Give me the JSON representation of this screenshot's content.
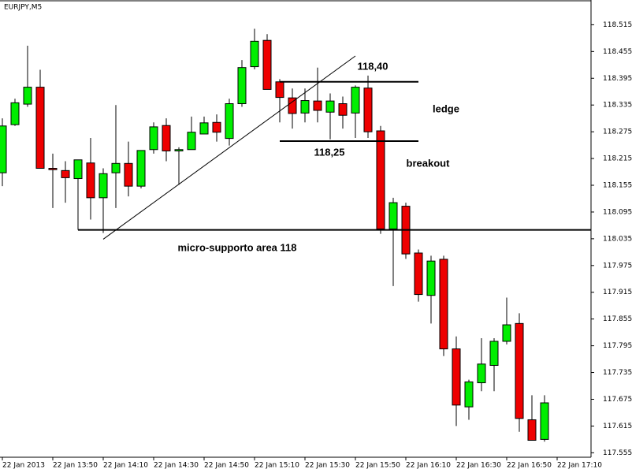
{
  "chart_data": {
    "type": "candlestick",
    "title": "EURJPY,M5",
    "categories": [
      "22 Jan 2013",
      null,
      null,
      null,
      "22 Jan 13:50",
      null,
      null,
      null,
      "22 Jan 14:10",
      null,
      null,
      null,
      "22 Jan 14:30",
      null,
      null,
      null,
      "22 Jan 14:50",
      null,
      null,
      null,
      "22 Jan 15:10",
      null,
      null,
      null,
      "22 Jan 15:30",
      null,
      null,
      null,
      "22 Jan 15:50",
      null,
      null,
      null,
      "22 Jan 16:10",
      null,
      null,
      null,
      "22 Jan 16:30",
      null,
      null,
      null,
      "22 Jan 16:50",
      null,
      null,
      null,
      "22 Jan 17:10"
    ],
    "open": [
      118.183,
      118.291,
      118.337,
      118.375,
      118.193,
      118.188,
      118.17,
      118.205,
      118.127,
      118.183,
      118.204,
      118.153,
      118.235,
      118.289,
      118.232,
      118.235,
      118.27,
      118.296,
      118.26,
      118.338,
      118.421,
      118.48,
      118.387,
      118.351,
      118.317,
      118.344,
      118.319,
      118.338,
      118.317,
      118.373,
      118.277,
      118.057,
      118.108,
      118.003,
      117.908,
      117.989,
      117.788,
      117.658,
      117.712,
      117.751,
      117.805,
      117.845,
      117.629,
      117.585,
      null
    ],
    "high": [
      118.305,
      118.349,
      118.468,
      118.414,
      118.226,
      118.209,
      118.212,
      118.261,
      118.193,
      118.335,
      118.253,
      118.233,
      118.296,
      118.305,
      118.24,
      118.309,
      118.309,
      118.314,
      118.349,
      118.436,
      118.506,
      118.494,
      118.393,
      118.372,
      118.372,
      118.419,
      118.361,
      118.354,
      118.379,
      118.401,
      118.288,
      118.127,
      118.116,
      118.011,
      117.997,
      117.997,
      117.816,
      117.719,
      117.812,
      117.812,
      117.903,
      117.868,
      117.684,
      117.684,
      null
    ],
    "low": [
      118.153,
      118.288,
      118.331,
      118.193,
      118.104,
      118.116,
      118.055,
      118.078,
      118.048,
      118.104,
      118.13,
      118.148,
      118.226,
      118.209,
      118.156,
      118.235,
      118.27,
      118.253,
      118.244,
      118.331,
      118.415,
      118.37,
      118.296,
      118.282,
      118.296,
      118.296,
      118.258,
      118.282,
      118.261,
      118.261,
      118.046,
      117.929,
      117.99,
      117.894,
      117.845,
      117.772,
      117.615,
      117.629,
      117.693,
      117.693,
      117.798,
      117.602,
      117.583,
      117.58,
      null
    ],
    "close": [
      118.288,
      118.34,
      118.375,
      118.193,
      118.19,
      118.172,
      118.212,
      118.127,
      118.181,
      118.204,
      118.153,
      118.233,
      118.286,
      118.232,
      118.235,
      118.274,
      118.295,
      118.274,
      118.338,
      118.419,
      118.478,
      118.37,
      118.352,
      118.316,
      118.345,
      118.323,
      118.344,
      118.312,
      118.375,
      118.275,
      118.057,
      118.116,
      118.001,
      117.91,
      117.985,
      117.788,
      117.662,
      117.714,
      117.754,
      117.805,
      117.842,
      117.632,
      117.583,
      117.667,
      null
    ],
    "up_color": "#00ee00",
    "down_color": "#ee0000",
    "ylim": [
      117.545,
      118.567
    ],
    "yticks": [
      118.515,
      118.455,
      118.395,
      118.335,
      118.275,
      118.215,
      118.155,
      118.095,
      118.035,
      117.975,
      117.915,
      117.855,
      117.795,
      117.735,
      117.675,
      117.615,
      117.555
    ],
    "lines": [
      {
        "from": [
          8,
          118.034
        ],
        "to": [
          28,
          118.445
        ]
      },
      {
        "from": [
          22,
          118.387
        ],
        "to": [
          33,
          118.387
        ]
      },
      {
        "from": [
          22,
          118.254
        ],
        "to": [
          33,
          118.254
        ]
      },
      {
        "from": [
          6,
          118.055
        ],
        "to": [
          46.7,
          118.055
        ]
      }
    ],
    "annotations": [
      "118,40",
      "ledge",
      "118,25",
      "breakout",
      "micro-supporto area 118"
    ]
  }
}
